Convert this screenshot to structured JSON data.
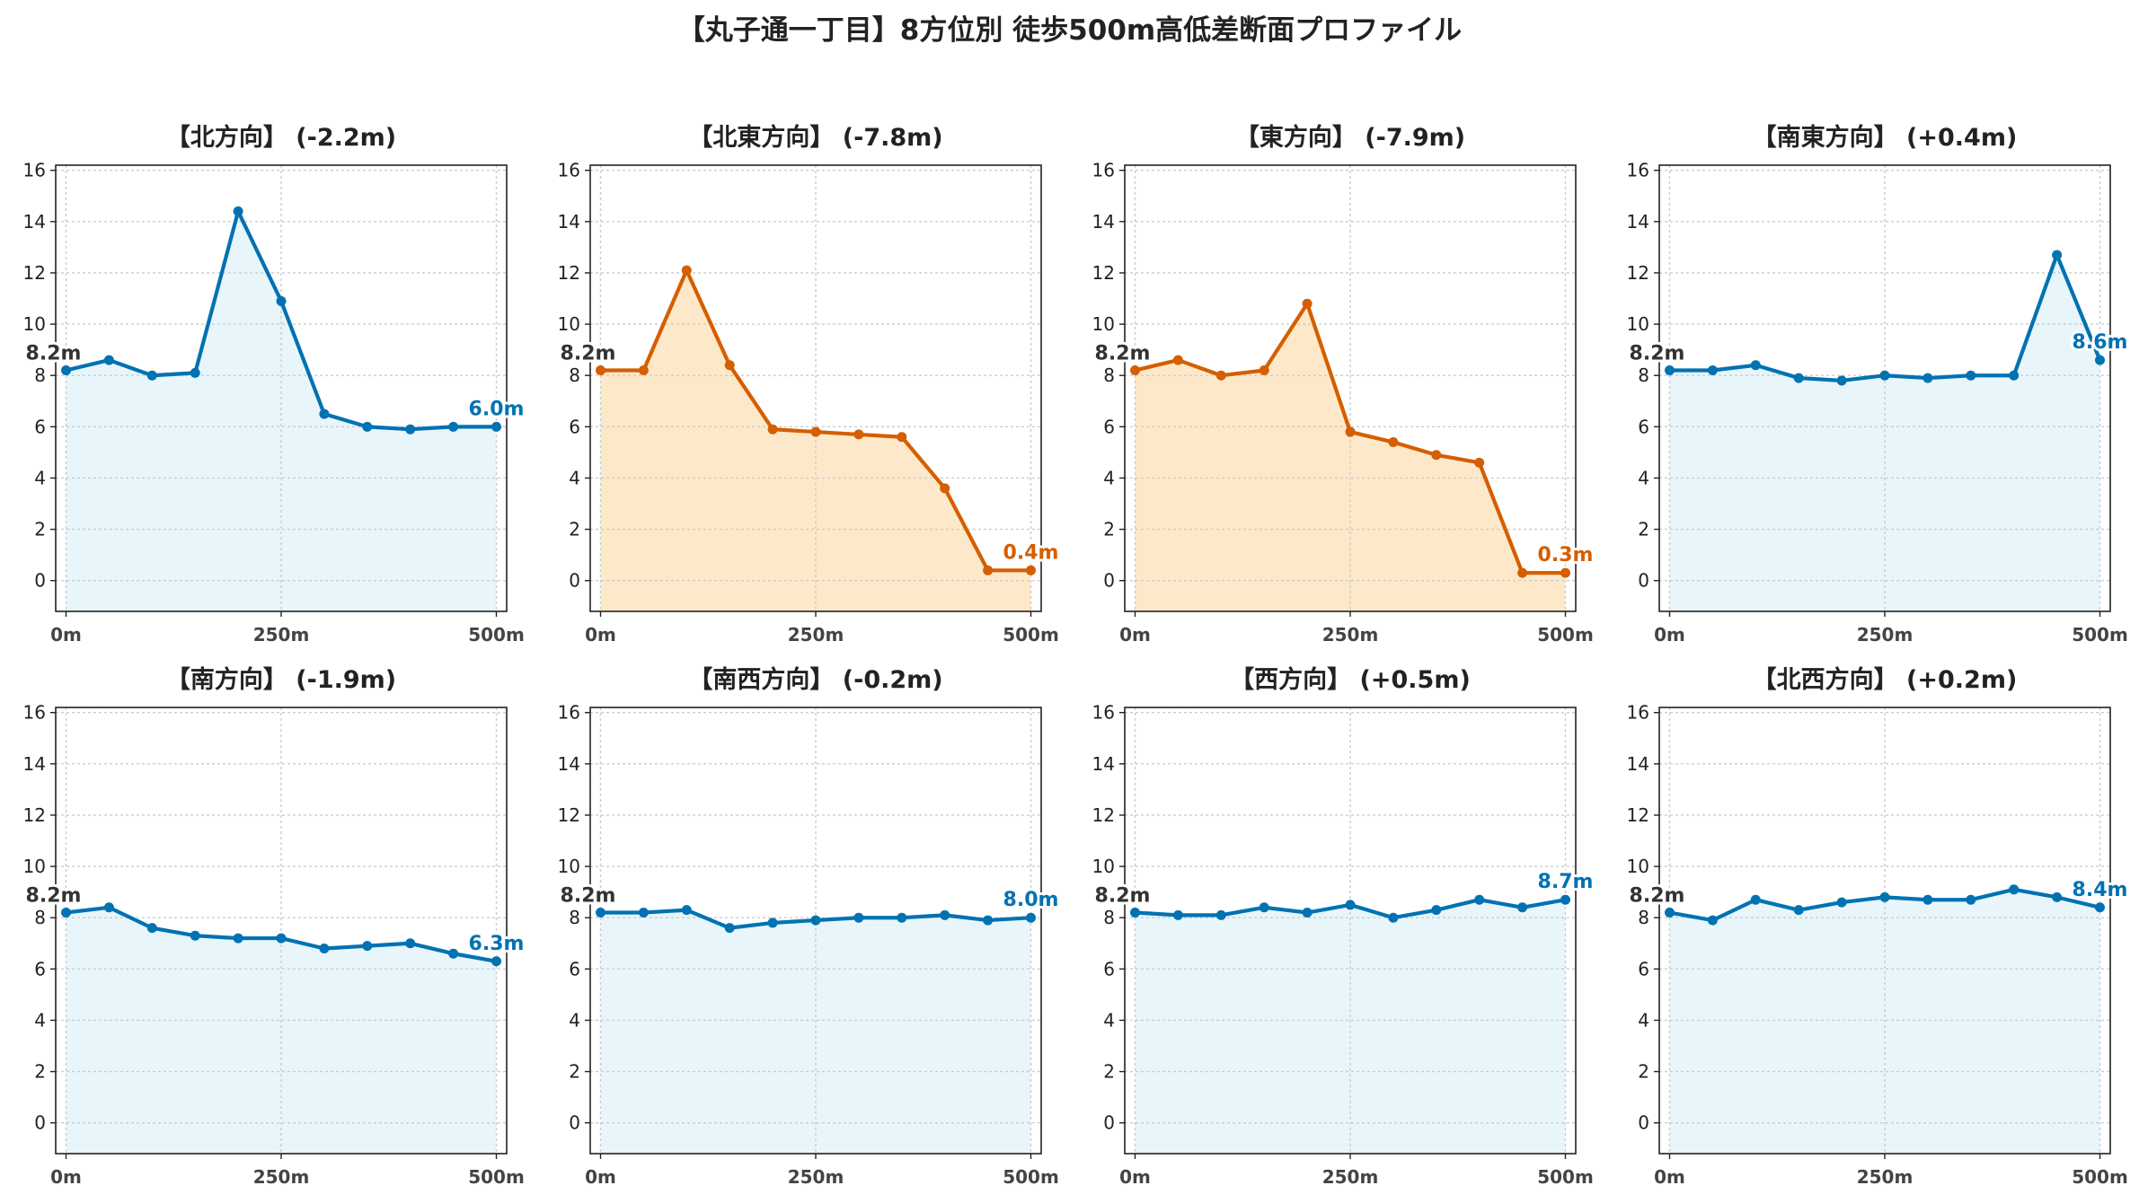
{
  "title": "【丸子通一丁目】8方位別 徒歩500m高低差断面プロファイル",
  "colors": {
    "descent_line": "#0072b2",
    "descent_fill": "#e8f6fb",
    "drop_line": "#d55e00",
    "drop_fill": "#fde9c9",
    "start_label": "#333333",
    "grid": "#cccccc"
  },
  "chart_data": [
    {
      "type": "line",
      "title": "【北方向】 (-2.2m)",
      "x": [
        0,
        50,
        100,
        150,
        200,
        250,
        300,
        350,
        400,
        450,
        500
      ],
      "values": [
        8.2,
        8.6,
        8.0,
        8.1,
        14.4,
        10.9,
        6.5,
        6.0,
        5.9,
        6.0,
        6.0
      ],
      "start_label": "8.2m",
      "end_label": "6.0m",
      "style": "blue",
      "xticks": [
        "0m",
        "250m",
        "500m"
      ],
      "yticks": [
        0,
        2,
        4,
        6,
        8,
        10,
        12,
        14,
        16
      ],
      "ylim": [
        -1.2,
        16.2
      ],
      "xlim": [
        -12,
        512
      ],
      "grid": true
    },
    {
      "type": "line",
      "title": "【北東方向】 (-7.8m)",
      "x": [
        0,
        50,
        100,
        150,
        200,
        250,
        300,
        350,
        400,
        450,
        500
      ],
      "values": [
        8.2,
        8.2,
        12.1,
        8.4,
        5.9,
        5.8,
        5.7,
        5.6,
        3.6,
        0.4,
        0.4
      ],
      "start_label": "8.2m",
      "end_label": "0.4m",
      "style": "orange",
      "xticks": [
        "0m",
        "250m",
        "500m"
      ],
      "yticks": [
        0,
        2,
        4,
        6,
        8,
        10,
        12,
        14,
        16
      ],
      "ylim": [
        -1.2,
        16.2
      ],
      "xlim": [
        -12,
        512
      ],
      "grid": true
    },
    {
      "type": "line",
      "title": "【東方向】 (-7.9m)",
      "x": [
        0,
        50,
        100,
        150,
        200,
        250,
        300,
        350,
        400,
        450,
        500
      ],
      "values": [
        8.2,
        8.6,
        8.0,
        8.2,
        10.8,
        5.8,
        5.4,
        4.9,
        4.6,
        0.3,
        0.3
      ],
      "start_label": "8.2m",
      "end_label": "0.3m",
      "style": "orange",
      "xticks": [
        "0m",
        "250m",
        "500m"
      ],
      "yticks": [
        0,
        2,
        4,
        6,
        8,
        10,
        12,
        14,
        16
      ],
      "ylim": [
        -1.2,
        16.2
      ],
      "xlim": [
        -12,
        512
      ],
      "grid": true
    },
    {
      "type": "line",
      "title": "【南東方向】 (+0.4m)",
      "x": [
        0,
        50,
        100,
        150,
        200,
        250,
        300,
        350,
        400,
        450,
        500
      ],
      "values": [
        8.2,
        8.2,
        8.4,
        7.9,
        7.8,
        8.0,
        7.9,
        8.0,
        8.0,
        12.7,
        8.6
      ],
      "start_label": "8.2m",
      "end_label": "8.6m",
      "style": "blue",
      "xticks": [
        "0m",
        "250m",
        "500m"
      ],
      "yticks": [
        0,
        2,
        4,
        6,
        8,
        10,
        12,
        14,
        16
      ],
      "ylim": [
        -1.2,
        16.2
      ],
      "xlim": [
        -12,
        512
      ],
      "grid": true
    },
    {
      "type": "line",
      "title": "【南方向】 (-1.9m)",
      "x": [
        0,
        50,
        100,
        150,
        200,
        250,
        300,
        350,
        400,
        450,
        500
      ],
      "values": [
        8.2,
        8.4,
        7.6,
        7.3,
        7.2,
        7.2,
        6.8,
        6.9,
        7.0,
        6.6,
        6.3
      ],
      "start_label": "8.2m",
      "end_label": "6.3m",
      "style": "blue",
      "xticks": [
        "0m",
        "250m",
        "500m"
      ],
      "yticks": [
        0,
        2,
        4,
        6,
        8,
        10,
        12,
        14,
        16
      ],
      "ylim": [
        -1.2,
        16.2
      ],
      "xlim": [
        -12,
        512
      ],
      "grid": true
    },
    {
      "type": "line",
      "title": "【南西方向】 (-0.2m)",
      "x": [
        0,
        50,
        100,
        150,
        200,
        250,
        300,
        350,
        400,
        450,
        500
      ],
      "values": [
        8.2,
        8.2,
        8.3,
        7.6,
        7.8,
        7.9,
        8.0,
        8.0,
        8.1,
        7.9,
        8.0
      ],
      "start_label": "8.2m",
      "end_label": "8.0m",
      "style": "blue",
      "xticks": [
        "0m",
        "250m",
        "500m"
      ],
      "yticks": [
        0,
        2,
        4,
        6,
        8,
        10,
        12,
        14,
        16
      ],
      "ylim": [
        -1.2,
        16.2
      ],
      "xlim": [
        -12,
        512
      ],
      "grid": true
    },
    {
      "type": "line",
      "title": "【西方向】 (+0.5m)",
      "x": [
        0,
        50,
        100,
        150,
        200,
        250,
        300,
        350,
        400,
        450,
        500
      ],
      "values": [
        8.2,
        8.1,
        8.1,
        8.4,
        8.2,
        8.5,
        8.0,
        8.3,
        8.7,
        8.4,
        8.7
      ],
      "start_label": "8.2m",
      "end_label": "8.7m",
      "style": "blue",
      "xticks": [
        "0m",
        "250m",
        "500m"
      ],
      "yticks": [
        0,
        2,
        4,
        6,
        8,
        10,
        12,
        14,
        16
      ],
      "ylim": [
        -1.2,
        16.2
      ],
      "xlim": [
        -12,
        512
      ],
      "grid": true
    },
    {
      "type": "line",
      "title": "【北西方向】 (+0.2m)",
      "x": [
        0,
        50,
        100,
        150,
        200,
        250,
        300,
        350,
        400,
        450,
        500
      ],
      "values": [
        8.2,
        7.9,
        8.7,
        8.3,
        8.6,
        8.8,
        8.7,
        8.7,
        9.1,
        8.8,
        8.4
      ],
      "start_label": "8.2m",
      "end_label": "8.4m",
      "style": "blue",
      "xticks": [
        "0m",
        "250m",
        "500m"
      ],
      "yticks": [
        0,
        2,
        4,
        6,
        8,
        10,
        12,
        14,
        16
      ],
      "ylim": [
        -1.2,
        16.2
      ],
      "xlim": [
        -12,
        512
      ],
      "grid": true
    }
  ]
}
